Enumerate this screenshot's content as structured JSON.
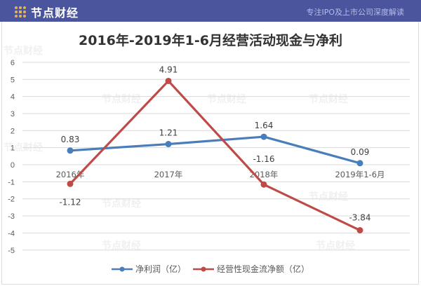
{
  "header": {
    "brand_name": "节点财经",
    "slogan": "专注IPO及上市公司深度解读",
    "background_color": "#4a559e"
  },
  "watermark_text": "节点财经",
  "chart_data": {
    "type": "line",
    "title": "2016年-2019年1-6月经营活动现金与净利",
    "categories": [
      "2016年",
      "2017年",
      "2018年",
      "2019年1-6月"
    ],
    "series": [
      {
        "name": "净利润（亿）",
        "color": "#4a7ebb",
        "values": [
          0.83,
          1.21,
          1.64,
          0.09
        ]
      },
      {
        "name": "经营性现金流净额（亿）",
        "color": "#be4b48",
        "values": [
          -1.12,
          4.91,
          -1.16,
          -3.84
        ]
      }
    ],
    "data_labels": {
      "净利润（亿）": [
        "0.83",
        "1.21",
        "1.64",
        "0.09"
      ],
      "经营性现金流净额（亿）": [
        "-1.12",
        "4.91",
        "-1.16",
        "-3.84"
      ]
    },
    "xlabel": "",
    "ylabel": "",
    "ylim": [
      -5,
      6
    ],
    "yticks": [
      6,
      5,
      4,
      3,
      2,
      1,
      0,
      -1,
      -2,
      -3,
      -4,
      -5
    ],
    "grid": true,
    "legend_position": "bottom"
  }
}
